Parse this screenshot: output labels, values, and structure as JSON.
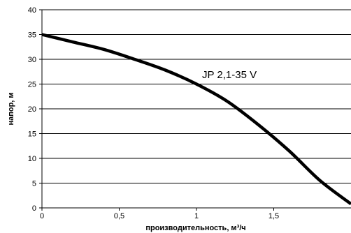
{
  "chart_data": {
    "type": "line",
    "xlabel": "производительность, м³/ч",
    "ylabel": "напор, м",
    "xlim": [
      0,
      2
    ],
    "ylim": [
      0,
      40
    ],
    "x_ticks": [
      0,
      0.5,
      1,
      1.5
    ],
    "x_tick_labels": [
      "0",
      "0,5",
      "1",
      "1,5"
    ],
    "y_ticks": [
      0,
      5,
      10,
      15,
      20,
      25,
      30,
      35,
      40
    ],
    "y_tick_labels": [
      "0",
      "5",
      "10",
      "15",
      "20",
      "25",
      "30",
      "35",
      "40"
    ],
    "grid": "horizontal",
    "series": [
      {
        "name": "JP 2,1-35 V",
        "color": "#000000",
        "x": [
          0,
          0.2,
          0.4,
          0.6,
          0.8,
          1.0,
          1.2,
          1.4,
          1.6,
          1.8,
          2.0
        ],
        "y": [
          35,
          33.5,
          32,
          30,
          27.8,
          25,
          21.5,
          16.8,
          11.5,
          5.5,
          0.8
        ]
      }
    ]
  }
}
